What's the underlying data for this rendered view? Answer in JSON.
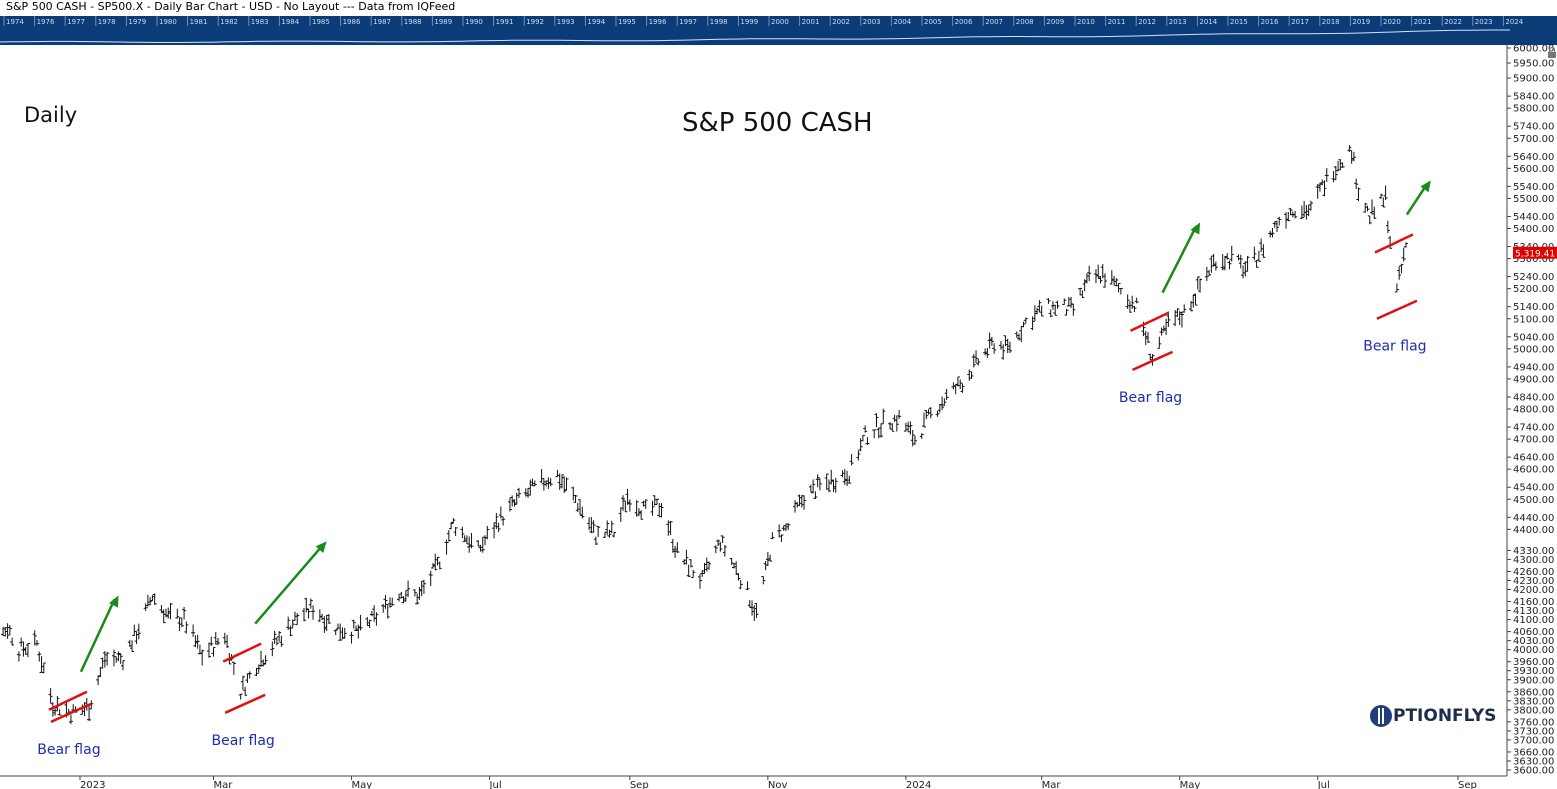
{
  "header": {
    "caption": "S&P 500 CASH - SP500.X - Daily Bar Chart - USD - No Layout --- Data from IQFeed"
  },
  "overview": {
    "years": [
      "1974",
      "1976",
      "1977",
      "1978",
      "1979",
      "1980",
      "1981",
      "1982",
      "1983",
      "1984",
      "1985",
      "1986",
      "1987",
      "1988",
      "1989",
      "1990",
      "1991",
      "1992",
      "1993",
      "1994",
      "1995",
      "1996",
      "1997",
      "1998",
      "1999",
      "2000",
      "2001",
      "2002",
      "2003",
      "2004",
      "2005",
      "2006",
      "2007",
      "2008",
      "2009",
      "2010",
      "2011",
      "2012",
      "2013",
      "2014",
      "2015",
      "2016",
      "2017",
      "2018",
      "2019",
      "2020",
      "2021",
      "2022",
      "2023",
      "2024"
    ],
    "bg_color": "#0b3c78"
  },
  "labels": {
    "timeframe": "Daily",
    "instrument": "S&P 500 CASH",
    "logo": "PTIONFLYS"
  },
  "chart_data": {
    "type": "ohlc-bar",
    "title": "S&P 500 CASH",
    "subtitle": "Daily",
    "ylim": [
      3580,
      6040
    ],
    "y_ticks": [
      6000,
      5950,
      5900,
      5840,
      5800,
      5740,
      5700,
      5640,
      5600,
      5540,
      5500,
      5440,
      5400,
      5340,
      5300,
      5240,
      5200,
      5140,
      5100,
      5040,
      5000,
      4940,
      4900,
      4840,
      4800,
      4740,
      4700,
      4640,
      4600,
      4540,
      4500,
      4440,
      4400,
      4330,
      4300,
      4260,
      4230,
      4200,
      4160,
      4130,
      4100,
      4060,
      4030,
      4000,
      3960,
      3930,
      3900,
      3860,
      3830,
      3800,
      3760,
      3730,
      3700,
      3660,
      3630,
      3600
    ],
    "x_ticks": [
      {
        "label": "2023",
        "date": "2023-01-01"
      },
      {
        "label": "Mar",
        "date": "2023-03-01"
      },
      {
        "label": "May",
        "date": "2023-05-01"
      },
      {
        "label": "Jul",
        "date": "2023-07-01"
      },
      {
        "label": "Sep",
        "date": "2023-09-01"
      },
      {
        "label": "Nov",
        "date": "2023-11-01"
      },
      {
        "label": "2024",
        "date": "2024-01-01"
      },
      {
        "label": "Mar",
        "date": "2024-03-01"
      },
      {
        "label": "May",
        "date": "2024-05-01"
      },
      {
        "label": "Jul",
        "date": "2024-07-01"
      },
      {
        "label": "Sep",
        "date": "2024-09-01"
      }
    ],
    "xlim": [
      "2022-11-15",
      "2024-09-15"
    ],
    "last_price": {
      "label": "5,319.41",
      "value": 5319.41,
      "color": "#e00000"
    },
    "path_points": [
      [
        "2022-11-15",
        3990
      ],
      [
        "2022-11-22",
        4010
      ],
      [
        "2022-11-30",
        4075
      ],
      [
        "2022-12-05",
        4000
      ],
      [
        "2022-12-13",
        4020
      ],
      [
        "2022-12-20",
        3820
      ],
      [
        "2022-12-28",
        3790
      ],
      [
        "2023-01-05",
        3810
      ],
      [
        "2023-01-12",
        3970
      ],
      [
        "2023-01-20",
        3970
      ],
      [
        "2023-01-27",
        4070
      ],
      [
        "2023-02-02",
        4180
      ],
      [
        "2023-02-09",
        4110
      ],
      [
        "2023-02-16",
        4100
      ],
      [
        "2023-02-24",
        3980
      ],
      [
        "2023-03-06",
        4050
      ],
      [
        "2023-03-13",
        3860
      ],
      [
        "2023-03-20",
        3950
      ],
      [
        "2023-03-29",
        4030
      ],
      [
        "2023-04-06",
        4100
      ],
      [
        "2023-04-14",
        4140
      ],
      [
        "2023-04-25",
        4070
      ],
      [
        "2023-05-04",
        4060
      ],
      [
        "2023-05-12",
        4110
      ],
      [
        "2023-05-22",
        4190
      ],
      [
        "2023-05-31",
        4180
      ],
      [
        "2023-06-08",
        4280
      ],
      [
        "2023-06-15",
        4420
      ],
      [
        "2023-06-26",
        4330
      ],
      [
        "2023-07-05",
        4430
      ],
      [
        "2023-07-14",
        4500
      ],
      [
        "2023-07-25",
        4560
      ],
      [
        "2023-07-31",
        4580
      ],
      [
        "2023-08-08",
        4500
      ],
      [
        "2023-08-17",
        4380
      ],
      [
        "2023-08-25",
        4390
      ],
      [
        "2023-08-31",
        4510
      ],
      [
        "2023-09-08",
        4460
      ],
      [
        "2023-09-15",
        4480
      ],
      [
        "2023-09-22",
        4320
      ],
      [
        "2023-10-03",
        4230
      ],
      [
        "2023-10-11",
        4360
      ],
      [
        "2023-10-20",
        4240
      ],
      [
        "2023-10-27",
        4120
      ],
      [
        "2023-11-03",
        4360
      ],
      [
        "2023-11-10",
        4410
      ],
      [
        "2023-11-17",
        4510
      ],
      [
        "2023-11-28",
        4560
      ],
      [
        "2023-12-07",
        4590
      ],
      [
        "2023-12-14",
        4710
      ],
      [
        "2023-12-21",
        4750
      ],
      [
        "2023-12-29",
        4770
      ],
      [
        "2024-01-05",
        4700
      ],
      [
        "2024-01-12",
        4780
      ],
      [
        "2024-01-19",
        4840
      ],
      [
        "2024-01-26",
        4890
      ],
      [
        "2024-02-02",
        4960
      ],
      [
        "2024-02-09",
        5020
      ],
      [
        "2024-02-15",
        5000
      ],
      [
        "2024-02-23",
        5090
      ],
      [
        "2024-03-01",
        5130
      ],
      [
        "2024-03-08",
        5140
      ],
      [
        "2024-03-15",
        5130
      ],
      [
        "2024-03-22",
        5230
      ],
      [
        "2024-03-28",
        5250
      ],
      [
        "2024-04-04",
        5200
      ],
      [
        "2024-04-12",
        5140
      ],
      [
        "2024-04-19",
        4970
      ],
      [
        "2024-04-26",
        5080
      ],
      [
        "2024-05-03",
        5120
      ],
      [
        "2024-05-10",
        5210
      ],
      [
        "2024-05-17",
        5300
      ],
      [
        "2024-05-24",
        5300
      ],
      [
        "2024-05-31",
        5260
      ],
      [
        "2024-06-07",
        5340
      ],
      [
        "2024-06-14",
        5430
      ],
      [
        "2024-06-21",
        5470
      ],
      [
        "2024-06-28",
        5460
      ],
      [
        "2024-07-03",
        5540
      ],
      [
        "2024-07-10",
        5620
      ],
      [
        "2024-07-16",
        5660
      ],
      [
        "2024-07-19",
        5530
      ],
      [
        "2024-07-24",
        5440
      ],
      [
        "2024-07-31",
        5500
      ],
      [
        "2024-08-02",
        5360
      ],
      [
        "2024-08-05",
        5190
      ],
      [
        "2024-08-09",
        5340
      ]
    ],
    "annotations": [
      {
        "type": "bear-flag",
        "label": "Bear flag",
        "date": "2022-12-28",
        "low": 3780,
        "high": 3860,
        "arrow_to_date": "2023-01-18",
        "arrow_to_value": 4180
      },
      {
        "type": "bear-flag",
        "label": "Bear flag",
        "date": "2023-03-15",
        "low": 3810,
        "high": 4020,
        "arrow_to_date": "2023-04-20",
        "arrow_to_value": 4360
      },
      {
        "type": "bear-flag",
        "label": "Bear flag",
        "date": "2024-04-19",
        "low": 4950,
        "high": 5120,
        "arrow_to_date": "2024-05-10",
        "arrow_to_value": 5420
      },
      {
        "type": "bear-flag",
        "label": "Bear flag",
        "date": "2024-08-05",
        "low": 5120,
        "high": 5380,
        "arrow_to_date": "2024-08-20",
        "arrow_to_value": 5560
      }
    ]
  }
}
